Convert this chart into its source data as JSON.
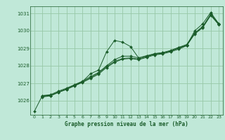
{
  "title": "Graphe pression niveau de la mer (hPa)",
  "bg_color": "#c0e8d8",
  "grid_color": "#98c8a8",
  "line_color": "#1a5c2a",
  "xlim": [
    -0.5,
    23.5
  ],
  "ylim": [
    1025.2,
    1031.4
  ],
  "yticks": [
    1026,
    1027,
    1028,
    1029,
    1030,
    1031
  ],
  "xticks": [
    0,
    1,
    2,
    3,
    4,
    5,
    6,
    7,
    8,
    9,
    10,
    11,
    12,
    13,
    14,
    15,
    16,
    17,
    18,
    19,
    20,
    21,
    22,
    23
  ],
  "series": [
    {
      "x": [
        0,
        1,
        2,
        3,
        4,
        5,
        6,
        7,
        8,
        9,
        10,
        11,
        12,
        13,
        14,
        15,
        16,
        17,
        18,
        19,
        20,
        21,
        22,
        23
      ],
      "y": [
        1025.4,
        1026.3,
        1026.3,
        1026.5,
        1026.65,
        1026.9,
        1027.1,
        1027.55,
        1027.75,
        1028.8,
        1029.45,
        1029.35,
        1029.1,
        1028.45,
        1028.55,
        1028.7,
        1028.75,
        1028.85,
        1029.05,
        1029.15,
        1030.0,
        1030.4,
        1031.05,
        1030.4
      ]
    },
    {
      "x": [
        1,
        2,
        3,
        4,
        5,
        6,
        7,
        8,
        9,
        10,
        11,
        12,
        13,
        14,
        15,
        16,
        17,
        18,
        19,
        20,
        21,
        22,
        23
      ],
      "y": [
        1026.3,
        1026.35,
        1026.55,
        1026.72,
        1026.92,
        1027.12,
        1027.38,
        1027.62,
        1028.0,
        1028.35,
        1028.55,
        1028.55,
        1028.45,
        1028.58,
        1028.68,
        1028.75,
        1028.88,
        1029.05,
        1029.22,
        1029.88,
        1030.25,
        1030.95,
        1030.42
      ]
    },
    {
      "x": [
        1,
        2,
        3,
        4,
        5,
        6,
        7,
        8,
        9,
        10,
        11,
        12,
        13,
        14,
        15,
        16,
        17,
        18,
        19,
        20,
        21,
        22,
        23
      ],
      "y": [
        1026.25,
        1026.3,
        1026.5,
        1026.68,
        1026.88,
        1027.08,
        1027.32,
        1027.58,
        1027.95,
        1028.25,
        1028.42,
        1028.45,
        1028.38,
        1028.52,
        1028.65,
        1028.72,
        1028.84,
        1029.0,
        1029.18,
        1029.84,
        1030.2,
        1030.92,
        1030.38
      ]
    },
    {
      "x": [
        1,
        2,
        3,
        4,
        5,
        6,
        7,
        8,
        9,
        10,
        11,
        12,
        13,
        14,
        15,
        16,
        17,
        18,
        19,
        20,
        21,
        22,
        23
      ],
      "y": [
        1026.22,
        1026.28,
        1026.48,
        1026.65,
        1026.85,
        1027.05,
        1027.28,
        1027.52,
        1027.9,
        1028.2,
        1028.38,
        1028.42,
        1028.35,
        1028.48,
        1028.62,
        1028.68,
        1028.8,
        1028.95,
        1029.15,
        1029.82,
        1030.18,
        1030.88,
        1030.35
      ]
    }
  ]
}
